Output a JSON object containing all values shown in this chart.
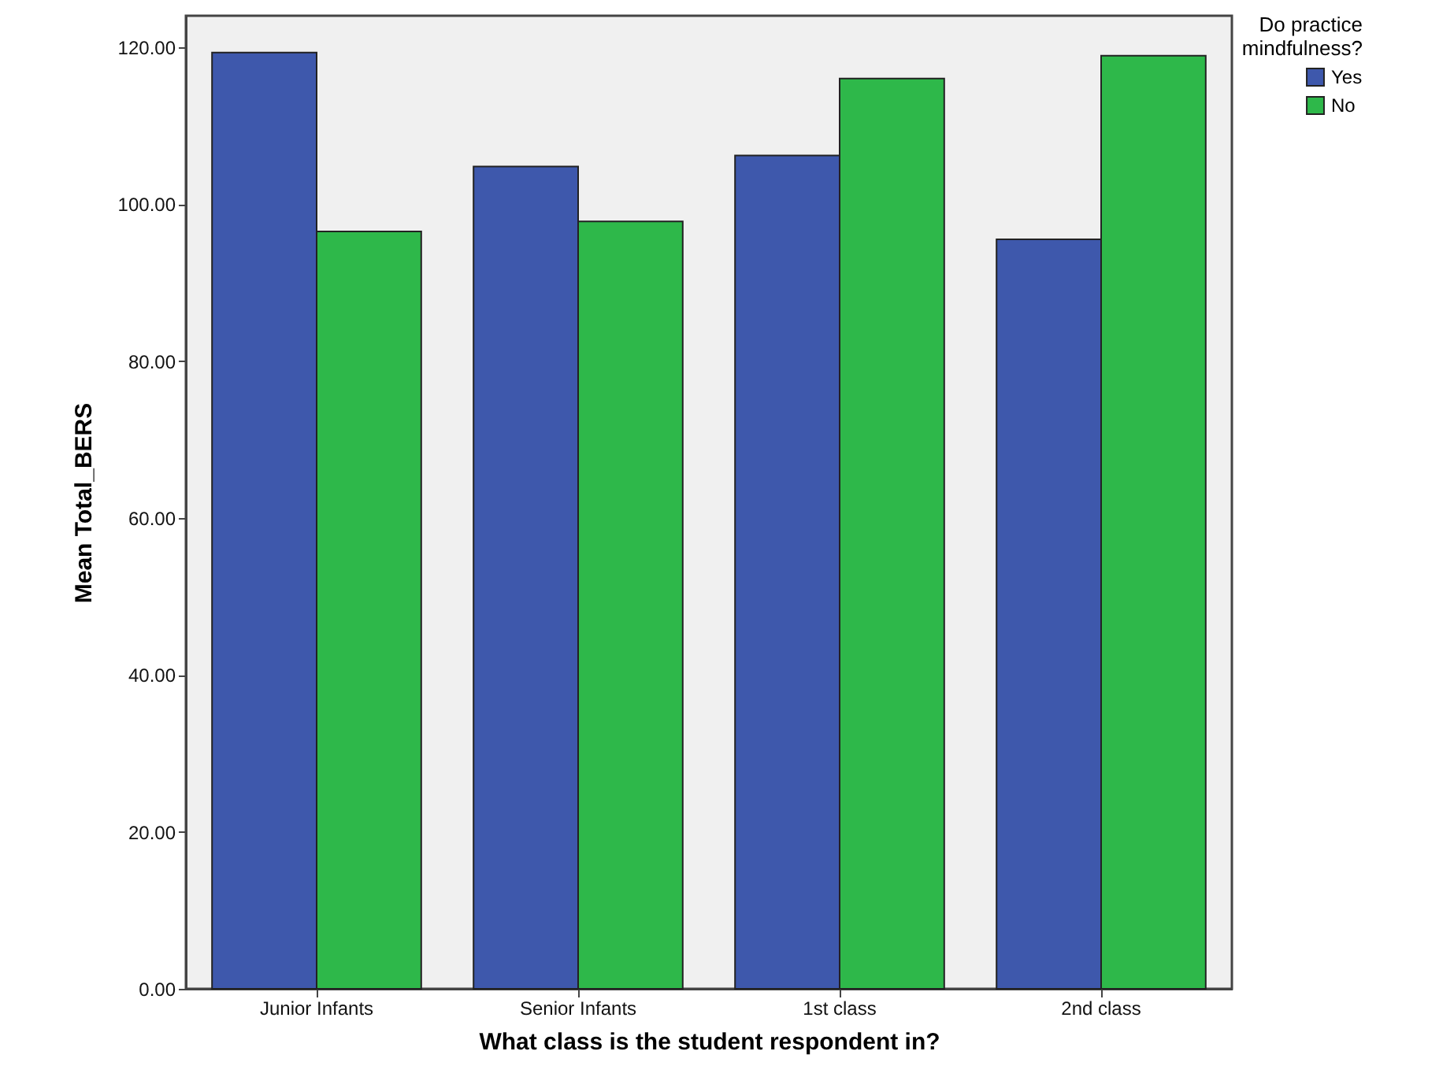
{
  "chart_data": {
    "type": "bar",
    "xlabel": "What class is the student respondent in?",
    "ylabel": "Mean Total_BERS",
    "legend_title": "Do practice mindfulness?",
    "legend": "top right",
    "grid": false,
    "categories": [
      "Junior Infants",
      "Senior Infants",
      "1st class",
      "2nd class"
    ],
    "series": [
      {
        "name": "Yes",
        "color": "#3e58ac",
        "values": [
          119.3,
          104.8,
          106.2,
          95.5
        ]
      },
      {
        "name": "No",
        "color": "#2eb84a",
        "values": [
          96.5,
          97.8,
          116.0,
          118.9
        ]
      }
    ],
    "ylim": [
      0,
      124
    ],
    "yticks": [
      {
        "value": 0,
        "label": "0.00"
      },
      {
        "value": 20,
        "label": "20.00"
      },
      {
        "value": 40,
        "label": "40.00"
      },
      {
        "value": 60,
        "label": "60.00"
      },
      {
        "value": 80,
        "label": "80.00"
      },
      {
        "value": 100,
        "label": "100.00"
      },
      {
        "value": 120,
        "label": "120.00"
      }
    ]
  }
}
